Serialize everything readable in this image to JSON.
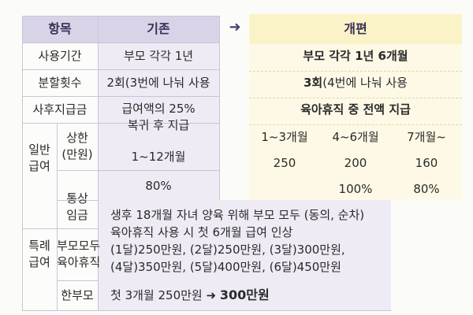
{
  "headers": {
    "item": "항목",
    "existing": "기존",
    "revised": "개편",
    "arrow": "➜"
  },
  "rows": {
    "period": {
      "label": "사용기간",
      "existing": "부모 각각 1년",
      "revised": "부모 각각 1년 6개월"
    },
    "split": {
      "label": "분할횟수",
      "existing": "2회(3번에 나눠 사용",
      "revised_bold": "3회",
      "revised_rest": "(4번에 나눠 사용"
    },
    "post": {
      "label": "사후지급금",
      "existing": "급여액의 25%\n복귀 후 지급",
      "revised": "육아휴직 중 전액 지급"
    },
    "general": {
      "label": "일반\n급여",
      "cap_label": "상한\n(만원)",
      "cap_existing": "1~12개월",
      "cap_periods": [
        "1~3개월",
        "4~6개월",
        "7개월~"
      ],
      "cap_values": [
        "250",
        "200",
        "160"
      ],
      "wage_label": "통상\n임금",
      "wage_existing": "80%",
      "wage_revised": [
        "100%",
        "80%"
      ]
    },
    "special": {
      "label": "특례\n급여",
      "parents_label": "부모모두\n육아휴직",
      "parents_text": "생후 18개월 자녀 양육 위해 부모 모두 (동의, 순차)\n육아휴직 사용 시 첫 6개월 급여 인상\n(1달)250만원, (2달)250만원, (3달)300만원,\n(4달)350만원, (5달)400만원, (6달)450만원",
      "single_label": "한부모",
      "single_text": "첫 3개월 250만원",
      "single_arrow": "➜",
      "single_result": "300만원"
    }
  }
}
